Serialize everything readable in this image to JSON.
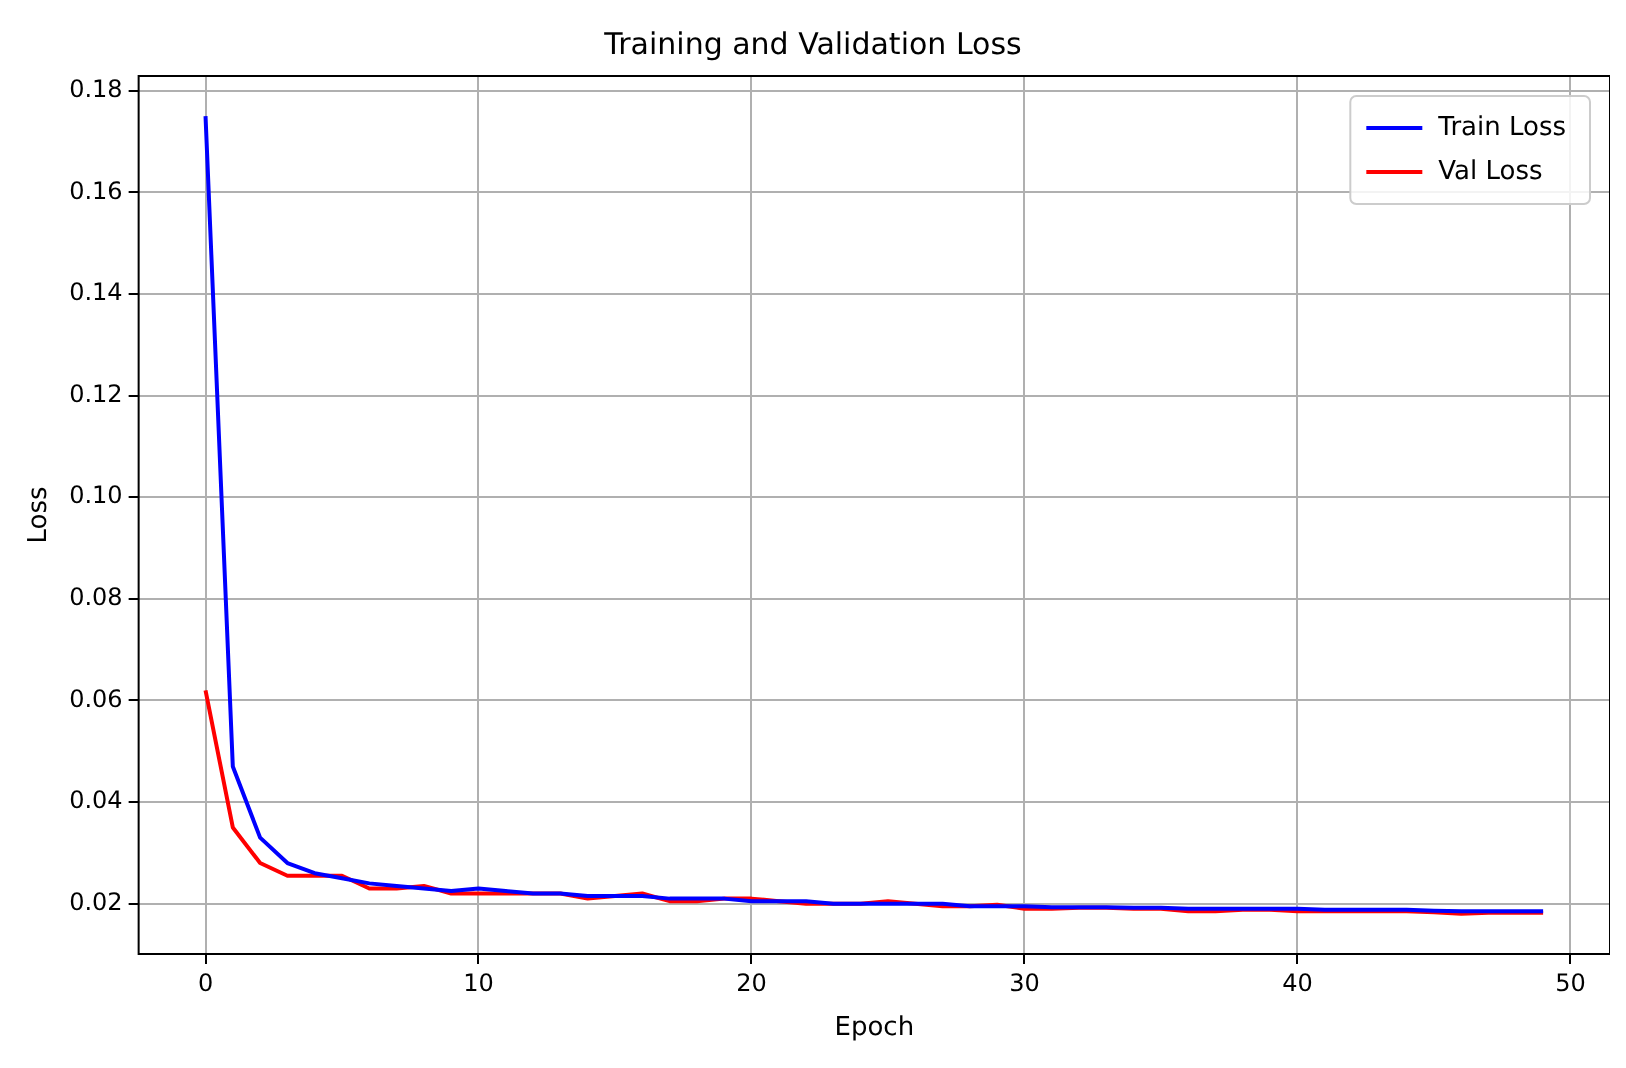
{
  "chart_data": {
    "type": "line",
    "title": "Training and Validation Loss",
    "xlabel": "Epoch",
    "ylabel": "Loss",
    "x": [
      0,
      1,
      2,
      3,
      4,
      5,
      6,
      7,
      8,
      9,
      10,
      11,
      12,
      13,
      14,
      15,
      16,
      17,
      18,
      19,
      20,
      21,
      22,
      23,
      24,
      25,
      26,
      27,
      28,
      29,
      30,
      31,
      32,
      33,
      34,
      35,
      36,
      37,
      38,
      39,
      40,
      41,
      42,
      43,
      44,
      45,
      46,
      47,
      48,
      49
    ],
    "series": [
      {
        "name": "Train Loss",
        "color": "#0000ff",
        "values": [
          0.175,
          0.047,
          0.033,
          0.028,
          0.026,
          0.025,
          0.024,
          0.0235,
          0.023,
          0.0225,
          0.023,
          0.0225,
          0.022,
          0.022,
          0.0215,
          0.0215,
          0.0215,
          0.021,
          0.021,
          0.021,
          0.0205,
          0.0205,
          0.0205,
          0.02,
          0.02,
          0.02,
          0.02,
          0.02,
          0.0195,
          0.0195,
          0.0195,
          0.0193,
          0.0193,
          0.0193,
          0.0192,
          0.0192,
          0.019,
          0.019,
          0.019,
          0.019,
          0.019,
          0.0188,
          0.0188,
          0.0188,
          0.0188,
          0.0186,
          0.0185,
          0.0185,
          0.0185,
          0.0185
        ]
      },
      {
        "name": "Val Loss",
        "color": "#ff0000",
        "values": [
          0.062,
          0.035,
          0.028,
          0.0255,
          0.0255,
          0.0255,
          0.023,
          0.023,
          0.0235,
          0.022,
          0.022,
          0.022,
          0.022,
          0.022,
          0.021,
          0.0215,
          0.022,
          0.0205,
          0.0205,
          0.021,
          0.021,
          0.0205,
          0.02,
          0.02,
          0.02,
          0.0205,
          0.02,
          0.0195,
          0.0195,
          0.0198,
          0.019,
          0.019,
          0.0192,
          0.0192,
          0.019,
          0.019,
          0.0185,
          0.0185,
          0.0188,
          0.0188,
          0.0185,
          0.0185,
          0.0185,
          0.0185,
          0.0185,
          0.0183,
          0.018,
          0.0182,
          0.0182,
          0.0182
        ]
      }
    ],
    "xlim": [
      -2.45,
      51.45
    ],
    "ylim": [
      0.0101,
      0.1829
    ],
    "xticks": [
      0,
      10,
      20,
      30,
      40,
      50
    ],
    "yticks": [
      {
        "value": 0.02,
        "label": "0.02"
      },
      {
        "value": 0.04,
        "label": "0.04"
      },
      {
        "value": 0.06,
        "label": "0.06"
      },
      {
        "value": 0.08,
        "label": "0.08"
      },
      {
        "value": 0.1,
        "label": "0.10"
      },
      {
        "value": 0.12,
        "label": "0.12"
      },
      {
        "value": 0.14,
        "label": "0.14"
      },
      {
        "value": 0.16,
        "label": "0.16"
      },
      {
        "value": 0.18,
        "label": "0.18"
      }
    ],
    "grid": true,
    "legend": "top right",
    "marker": "none",
    "line_style": "solid"
  }
}
